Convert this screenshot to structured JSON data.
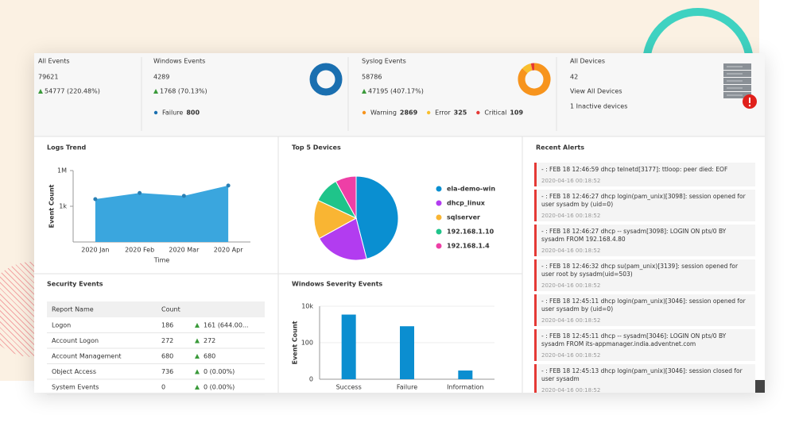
{
  "cards": [
    {
      "title": "All Events",
      "value": 79621,
      "change": "54777 (220.48%)"
    },
    {
      "title": "Windows Events",
      "value": 4289,
      "change": "1768 (70.13%)",
      "legend": [
        {
          "label": "Failure",
          "value": 800,
          "color": "#1a6fb0"
        }
      ]
    },
    {
      "title": "Syslog Events",
      "value": 58786,
      "change": "47195 (407.17%)",
      "legend": [
        {
          "label": "Warning",
          "value": 2869,
          "color": "#f7941d"
        },
        {
          "label": "Error",
          "value": 325,
          "color": "#f9bf2e"
        },
        {
          "label": "Critical",
          "value": 109,
          "color": "#e53935"
        }
      ]
    },
    {
      "title": "All Devices",
      "value": 42,
      "link": "View All Devices",
      "note": "1 Inactive devices"
    }
  ],
  "logs_trend": {
    "type": "area",
    "title": "Logs Trend",
    "categories": [
      "2020 Jan",
      "2020 Feb",
      "2020 Mar",
      "2020 Apr"
    ],
    "values": [
      4000,
      13000,
      7500,
      55000
    ],
    "color": "#3aa6de",
    "xlabel": "Time",
    "ylabel": "Event Count",
    "log_scale": true,
    "ylim": [
      1,
      1000000
    ],
    "yticks": [
      {
        "value": 1000,
        "label": "1k"
      },
      {
        "value": 1000000,
        "label": "1M"
      }
    ]
  },
  "top_devices": {
    "type": "pie",
    "title": "Top 5 Devices",
    "categories": [
      "ela-demo-win",
      "dhcp_linux",
      "sqlserver",
      "192.168.1.10",
      "192.168.1.4"
    ],
    "values": [
      46,
      21,
      15,
      10,
      8
    ],
    "colors": [
      "#0a8fd1",
      "#b23cf0",
      "#f9b533",
      "#1fc48a",
      "#ee3fa6"
    ]
  },
  "security_events": {
    "title": "Security Events",
    "columns": [
      "Report Name",
      "Count"
    ],
    "rows": [
      [
        "Logon",
        186,
        "161 (644.00..."
      ],
      [
        "Account Logon",
        272,
        "272"
      ],
      [
        "Account Management",
        680,
        "680"
      ],
      [
        "Object Access",
        736,
        "0 (0.00%)"
      ],
      [
        "System Events",
        0,
        "0 (0.00%)"
      ]
    ]
  },
  "severity": {
    "type": "bar",
    "title": "Windows Severity Events",
    "categories": [
      "Success",
      "Failure",
      "Information"
    ],
    "values": [
      3487,
      800,
      2
    ],
    "color": "#0b8ed0",
    "ylabel": "Event Count",
    "scale": "log1p",
    "ylim": [
      0,
      10000
    ],
    "yticks": [
      0,
      100,
      {
        "value": 10000,
        "label": "10k"
      }
    ],
    "grid": true
  },
  "recent_alerts": {
    "title": "Recent Alerts",
    "items": [
      {
        "text": "- : FEB 18 12:46:59 dhcp telnetd[3177]: ttloop: peer died: EOF",
        "date": "2020-04-16 00:18:52"
      },
      {
        "text": "- : FEB 18 12:46:27 dhcp login(pam_unix)[3098]: session opened for user sysadm by (uid=0)",
        "date": "2020-04-16 00:18:52"
      },
      {
        "text": "- : FEB 18 12:46:27 dhcp -- sysadm[3098]: LOGIN ON pts/0 BY sysadm FROM 192.168.4.80",
        "date": "2020-04-16 00:18:52"
      },
      {
        "text": "- : FEB 18 12:46:32 dhcp su(pam_unix)[3139]: session opened for user root by sysadm(uid=503)",
        "date": "2020-04-16 00:18:52"
      },
      {
        "text": "- : FEB 18 12:45:11 dhcp login(pam_unix)[3046]: session opened for user sysadm by (uid=0)",
        "date": "2020-04-16 00:18:52"
      },
      {
        "text": "- : FEB 18 12:45:11 dhcp -- sysadm[3046]: LOGIN ON pts/0 BY sysadm FROM its-appmanager.india.adventnet.com",
        "date": "2020-04-16 00:18:52"
      },
      {
        "text": "- : FEB 18 12:45:13 dhcp login(pam_unix)[3046]: session closed for user sysadm",
        "date": "2020-04-16 00:18:52"
      }
    ]
  }
}
